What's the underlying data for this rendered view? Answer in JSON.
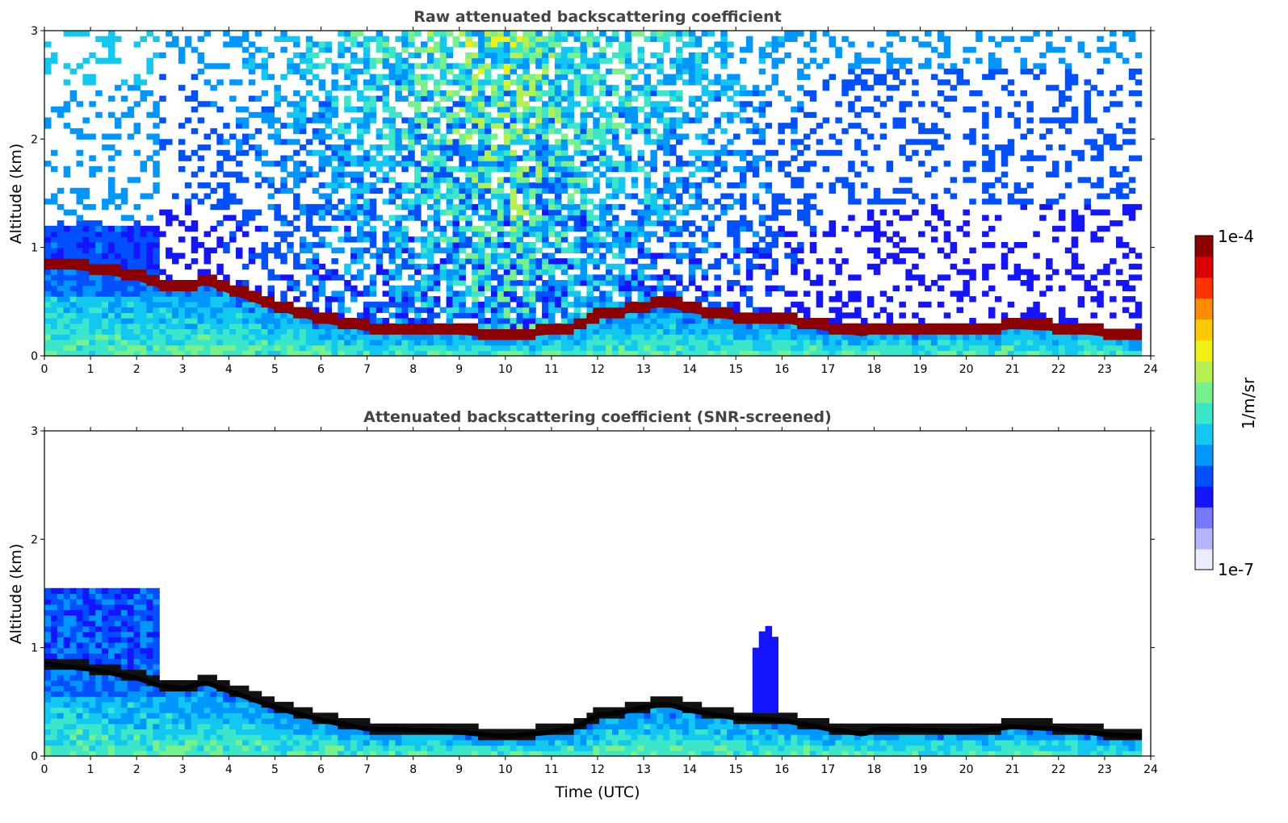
{
  "chart_data": [
    {
      "type": "heatmap",
      "title": "Raw attenuated backscattering coefficient",
      "xlabel": "",
      "ylabel": "Altitude (km)",
      "xlim": [
        0,
        24
      ],
      "ylim": [
        0,
        3
      ],
      "xticks": [
        "0",
        "1",
        "2",
        "3",
        "4",
        "5",
        "6",
        "7",
        "8",
        "9",
        "10",
        "11",
        "12",
        "13",
        "14",
        "15",
        "16",
        "17",
        "18",
        "19",
        "20",
        "21",
        "22",
        "23",
        "24"
      ],
      "yticks": [
        "0",
        "1",
        "2",
        "3"
      ],
      "screened": false,
      "cloud_base_km": {
        "time_utc": [
          0,
          1,
          2,
          2.5,
          3,
          3.5,
          4,
          5,
          6,
          7,
          8,
          9,
          10,
          11,
          11.6,
          12,
          12.5,
          13,
          13.5,
          14,
          15,
          16,
          17,
          17.8,
          18,
          19,
          20,
          21,
          22,
          23,
          23.8
        ],
        "altitude": [
          0.85,
          0.8,
          0.72,
          0.65,
          0.62,
          0.68,
          0.6,
          0.45,
          0.33,
          0.25,
          0.24,
          0.22,
          0.18,
          0.22,
          0.28,
          0.38,
          0.4,
          0.45,
          0.48,
          0.42,
          0.35,
          0.33,
          0.25,
          0.2,
          0.25,
          0.24,
          0.22,
          0.27,
          0.25,
          0.2,
          0.18
        ]
      }
    },
    {
      "type": "heatmap",
      "title": "Attenuated backscattering coefficient (SNR-screened)",
      "xlabel": "Time (UTC)",
      "ylabel": "Altitude (km)",
      "xlim": [
        0,
        24
      ],
      "ylim": [
        0,
        3
      ],
      "xticks": [
        "0",
        "1",
        "2",
        "3",
        "4",
        "5",
        "6",
        "7",
        "8",
        "9",
        "10",
        "11",
        "12",
        "13",
        "14",
        "15",
        "16",
        "17",
        "18",
        "19",
        "20",
        "21",
        "22",
        "23",
        "24"
      ],
      "yticks": [
        "0",
        "1",
        "2",
        "3"
      ],
      "screened": true
    }
  ],
  "colorbar": {
    "label": "1/m/sr",
    "max_label": "1e-4",
    "min_label": "1e-7",
    "scale": "log",
    "range": [
      1e-07,
      0.0001
    ],
    "colormap": [
      "#ececff",
      "#b4b4ff",
      "#7878ff",
      "#1414ff",
      "#0050ff",
      "#0096ff",
      "#12c8f0",
      "#3ce6c8",
      "#78f08c",
      "#b4f050",
      "#f0f014",
      "#ffc800",
      "#ff8c00",
      "#ff3200",
      "#dc0000",
      "#8c0000"
    ]
  }
}
